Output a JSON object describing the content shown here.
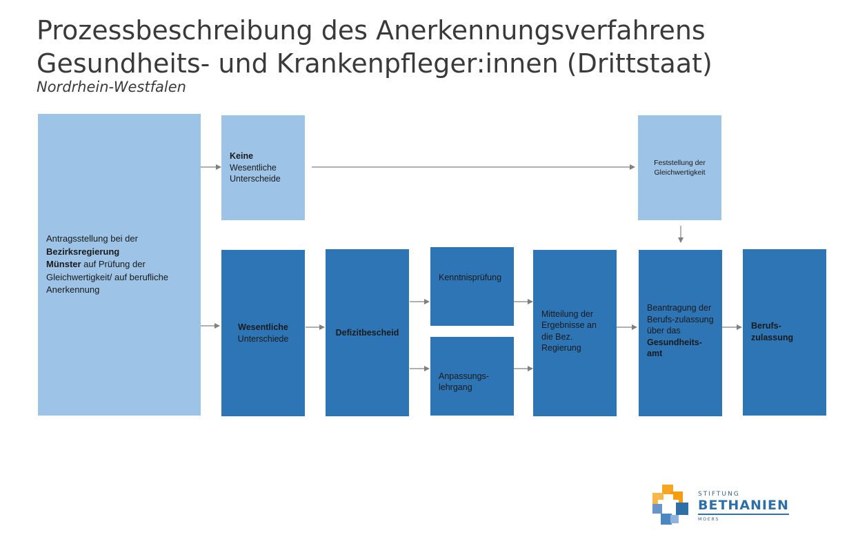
{
  "header": {
    "title_line1": "Prozessbeschreibung des Anerkennungsverfahrens",
    "title_line2": "Gesundheits- und Krankenpfleger:innen (Drittstaat)",
    "subtitle": "Nordrhein-Westfalen"
  },
  "colors": {
    "light_box": "#9dc3e6",
    "dark_box": "#2e75b6",
    "arrow": "#7f7f7f"
  },
  "nodes": {
    "antrag": {
      "text1": "Antragsstellung bei der",
      "bold1": "Bezirksregierung",
      "bold2": "Münster",
      "text2": " auf Prüfung der Gleichwertigkeit/ auf berufliche Anerkennung"
    },
    "keine": {
      "bold": "Keine",
      "text": "Wesentliche Unterscheide"
    },
    "feststellung": {
      "text": "Feststellung der Gleichwertigkeit"
    },
    "wesentliche": {
      "bold": "Wesentliche",
      "text": "Unterschiede"
    },
    "defizit": {
      "bold": "Defizitbescheid"
    },
    "kenntnis": {
      "text": "Kenntnisprüfung"
    },
    "anpassung": {
      "text": "Anpassungs-lehrgang"
    },
    "mitteilung": {
      "text": "Mitteilung der Ergebnisse an die Bez. Regierung"
    },
    "beantragung": {
      "text": "Beantragung der Berufs-zulassung über das",
      "bold": "Gesundheits-amt"
    },
    "zulassung": {
      "bold": "Berufs-zulassung"
    }
  },
  "logo": {
    "small": "STIFTUNG",
    "big": "BETHANIEN",
    "tiny": "MOERS",
    "icon": "cross-logo-icon"
  }
}
